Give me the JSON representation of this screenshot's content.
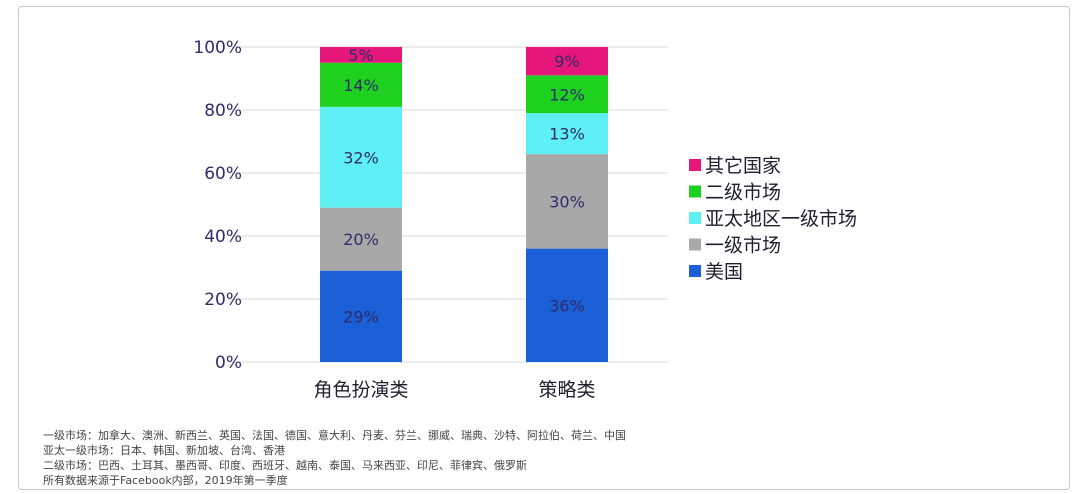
{
  "chart_data": {
    "type": "bar",
    "stacked": true,
    "categories": [
      "角色扮演类",
      "策略类"
    ],
    "series": [
      {
        "name": "美国",
        "color": "#1a5fd6",
        "values": [
          29,
          36
        ]
      },
      {
        "name": "一级市场",
        "color": "#a8a8a8",
        "values": [
          20,
          30
        ]
      },
      {
        "name": "亚太地区一级市场",
        "color": "#5ef0f4",
        "values": [
          32,
          13
        ]
      },
      {
        "name": "二级市场",
        "color": "#1fd11f",
        "values": [
          14,
          12
        ]
      },
      {
        "name": "其它国家",
        "color": "#e6177a",
        "values": [
          5,
          9
        ]
      }
    ],
    "data_labels": [
      [
        "29%",
        "20%",
        "32%",
        "14%",
        "5%"
      ],
      [
        "36%",
        "30%",
        "13%",
        "12%",
        "9%"
      ]
    ],
    "y_ticks": [
      "0%",
      "20%",
      "40%",
      "60%",
      "80%",
      "100%"
    ],
    "ylim": [
      0,
      100
    ],
    "grid": true,
    "legend_position": "right",
    "legend_order": [
      "其它国家",
      "二级市场",
      "亚太地区一级市场",
      "一级市场",
      "美国"
    ]
  },
  "notes": [
    "一级市场：加拿大、澳洲、新西兰、英国、法国、德国、意大利、丹麦、芬兰、挪威、瑞典、沙特、阿拉伯、荷兰、中国",
    "亚太一级市场：日本、韩国、新加坡、台湾、香港",
    "二级市场：巴西、土耳其、墨西哥、印度、西班牙、越南、泰国、马来西亚、印尼、菲律宾、俄罗斯",
    "所有数据来源于Facebook内部，2019年第一季度"
  ]
}
